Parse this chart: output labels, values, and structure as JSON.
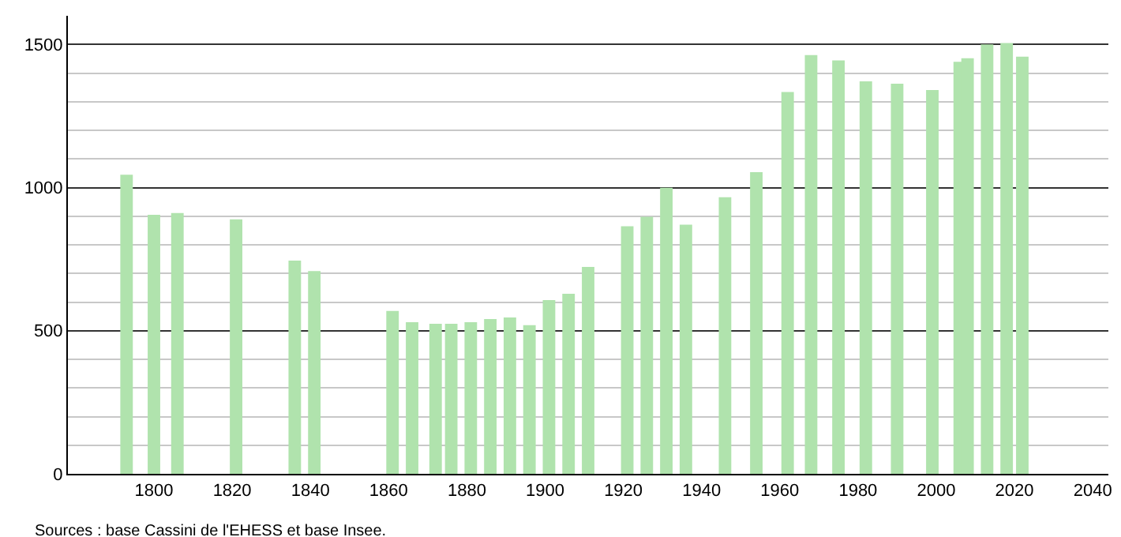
{
  "chart_data": {
    "type": "bar",
    "x": [
      1793,
      1800,
      1806,
      1821,
      1836,
      1841,
      1861,
      1866,
      1872,
      1876,
      1881,
      1886,
      1891,
      1896,
      1901,
      1906,
      1911,
      1921,
      1926,
      1931,
      1936,
      1946,
      1954,
      1962,
      1968,
      1975,
      1982,
      1990,
      1999,
      2006,
      2008,
      2013,
      2018,
      2022
    ],
    "values": [
      1045,
      905,
      911,
      889,
      745,
      708,
      569,
      530,
      524,
      524,
      530,
      541,
      546,
      519,
      607,
      629,
      723,
      865,
      898,
      999,
      870,
      966,
      1054,
      1334,
      1463,
      1444,
      1371,
      1363,
      1341,
      1439,
      1452,
      1500,
      1505,
      1457
    ],
    "color": "#b0e3ad",
    "xlim": [
      1778,
      2044
    ],
    "xticks": [
      1800,
      1820,
      1840,
      1860,
      1880,
      1900,
      1920,
      1940,
      1960,
      1980,
      2000,
      2020,
      2040
    ],
    "ylim": [
      0,
      1600
    ],
    "yticks": [
      0,
      500,
      1000,
      1500
    ],
    "grid": "y",
    "annotations": [
      "Sources : base Cassini de l'EHESS et base Insee."
    ]
  }
}
